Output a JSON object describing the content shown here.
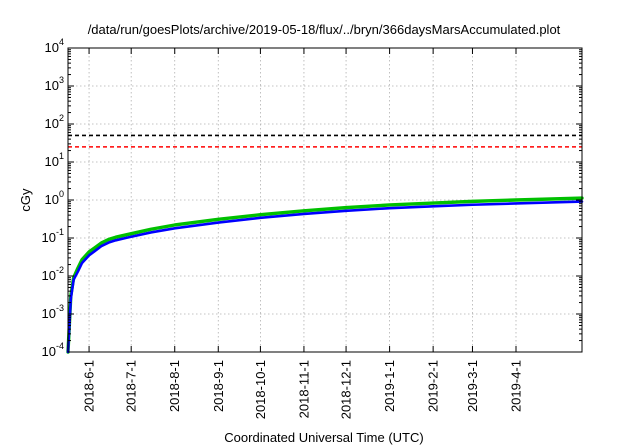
{
  "chart_data": {
    "type": "line",
    "title": "/data/run/goesPlots/archive/2019-05-18/flux/../bryn/366daysMarsAccumulated.plot",
    "xlabel": "Coordinated Universal Time (UTC)",
    "ylabel": "cGy",
    "yscale": "log",
    "ylim": [
      0.0001,
      10000
    ],
    "xlim": [
      "2018-05-17",
      "2019-05-18"
    ],
    "grid": true,
    "y_ticks": [
      {
        "value": 0.0001,
        "base": "10",
        "exp": "-4"
      },
      {
        "value": 0.001,
        "base": "10",
        "exp": "-3"
      },
      {
        "value": 0.01,
        "base": "10",
        "exp": "-2"
      },
      {
        "value": 0.1,
        "base": "10",
        "exp": "-1"
      },
      {
        "value": 1,
        "base": "10",
        "exp": "0"
      },
      {
        "value": 10,
        "base": "10",
        "exp": "1"
      },
      {
        "value": 100,
        "base": "10",
        "exp": "2"
      },
      {
        "value": 1000,
        "base": "10",
        "exp": "3"
      },
      {
        "value": 10000,
        "base": "10",
        "exp": "4"
      }
    ],
    "x_ticks": [
      {
        "date": "2018-06-01",
        "label": "2018-6-1"
      },
      {
        "date": "2018-07-01",
        "label": "2018-7-1"
      },
      {
        "date": "2018-08-01",
        "label": "2018-8-1"
      },
      {
        "date": "2018-09-01",
        "label": "2018-9-1"
      },
      {
        "date": "2018-10-01",
        "label": "2018-10-1"
      },
      {
        "date": "2018-11-01",
        "label": "2018-11-1"
      },
      {
        "date": "2018-12-01",
        "label": "2018-12-1"
      },
      {
        "date": "2019-01-01",
        "label": "2019-1-1"
      },
      {
        "date": "2019-02-01",
        "label": "2019-2-1"
      },
      {
        "date": "2019-03-01",
        "label": "2019-3-1"
      },
      {
        "date": "2019-04-01",
        "label": "2019-4-1"
      }
    ],
    "reference_lines": [
      {
        "y": 50,
        "color": "#000000",
        "style": "dashed"
      },
      {
        "y": 25,
        "color": "#ff0000",
        "style": "dashed"
      }
    ],
    "series": [
      {
        "color": "#00c000",
        "x": [
          "2018-05-17",
          "2018-05-19",
          "2018-05-21",
          "2018-05-24",
          "2018-05-27",
          "2018-06-01",
          "2018-06-05",
          "2018-06-10",
          "2018-06-15",
          "2018-06-20",
          "2018-07-01",
          "2018-07-15",
          "2018-08-01",
          "2018-09-01",
          "2018-10-01",
          "2018-11-01",
          "2018-12-01",
          "2019-01-01",
          "2019-02-01",
          "2019-03-01",
          "2019-04-01",
          "2019-05-18"
        ],
        "y": [
          0.0001,
          0.003,
          0.009,
          0.016,
          0.027,
          0.043,
          0.055,
          0.075,
          0.092,
          0.105,
          0.13,
          0.17,
          0.22,
          0.31,
          0.41,
          0.52,
          0.63,
          0.74,
          0.83,
          0.92,
          1.0,
          1.12
        ]
      },
      {
        "color": "#0000ff",
        "x": [
          "2018-05-17",
          "2018-05-19",
          "2018-05-21",
          "2018-05-24",
          "2018-05-27",
          "2018-06-01",
          "2018-06-05",
          "2018-06-10",
          "2018-06-15",
          "2018-06-20",
          "2018-07-01",
          "2018-07-15",
          "2018-08-01",
          "2018-09-01",
          "2018-10-01",
          "2018-11-01",
          "2018-12-01",
          "2019-01-01",
          "2019-02-01",
          "2019-03-01",
          "2019-04-01",
          "2019-05-18"
        ],
        "y": [
          0.0001,
          0.0025,
          0.008,
          0.013,
          0.022,
          0.035,
          0.045,
          0.062,
          0.076,
          0.087,
          0.108,
          0.14,
          0.18,
          0.255,
          0.34,
          0.43,
          0.52,
          0.61,
          0.68,
          0.75,
          0.81,
          0.91
        ]
      }
    ]
  }
}
